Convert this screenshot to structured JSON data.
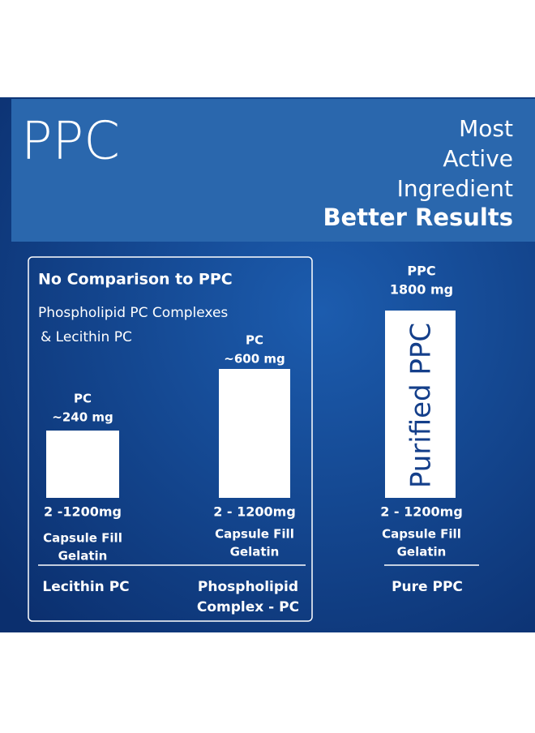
{
  "header": {
    "title": "PPC",
    "tagline": [
      "Most",
      "Active",
      "Ingredient"
    ],
    "highlight": "Better Results"
  },
  "comparison": {
    "heading": "No Comparison to PPC",
    "subheading": [
      "Phospholipid PC Complexes",
      "& Lecithin PC"
    ]
  },
  "columns": [
    {
      "amount": [
        "PC",
        "~240 mg"
      ],
      "dose": "2 -1200mg",
      "fill": [
        "Capsule Fill",
        "Gelatin"
      ],
      "name": [
        "Lecithin PC"
      ]
    },
    {
      "amount": [
        "PC",
        "~600 mg"
      ],
      "dose": "2 - 1200mg",
      "fill": [
        "Capsule Fill",
        "Gelatin"
      ],
      "name": [
        "Phospholipid",
        "Complex - PC"
      ]
    },
    {
      "amount": [
        "PPC",
        "1800 mg"
      ],
      "bar_label": "Purified PPC",
      "dose": "2 - 1200mg",
      "fill": [
        "Capsule Fill",
        "Gelatin"
      ],
      "name": [
        "Pure PPC"
      ]
    }
  ]
}
